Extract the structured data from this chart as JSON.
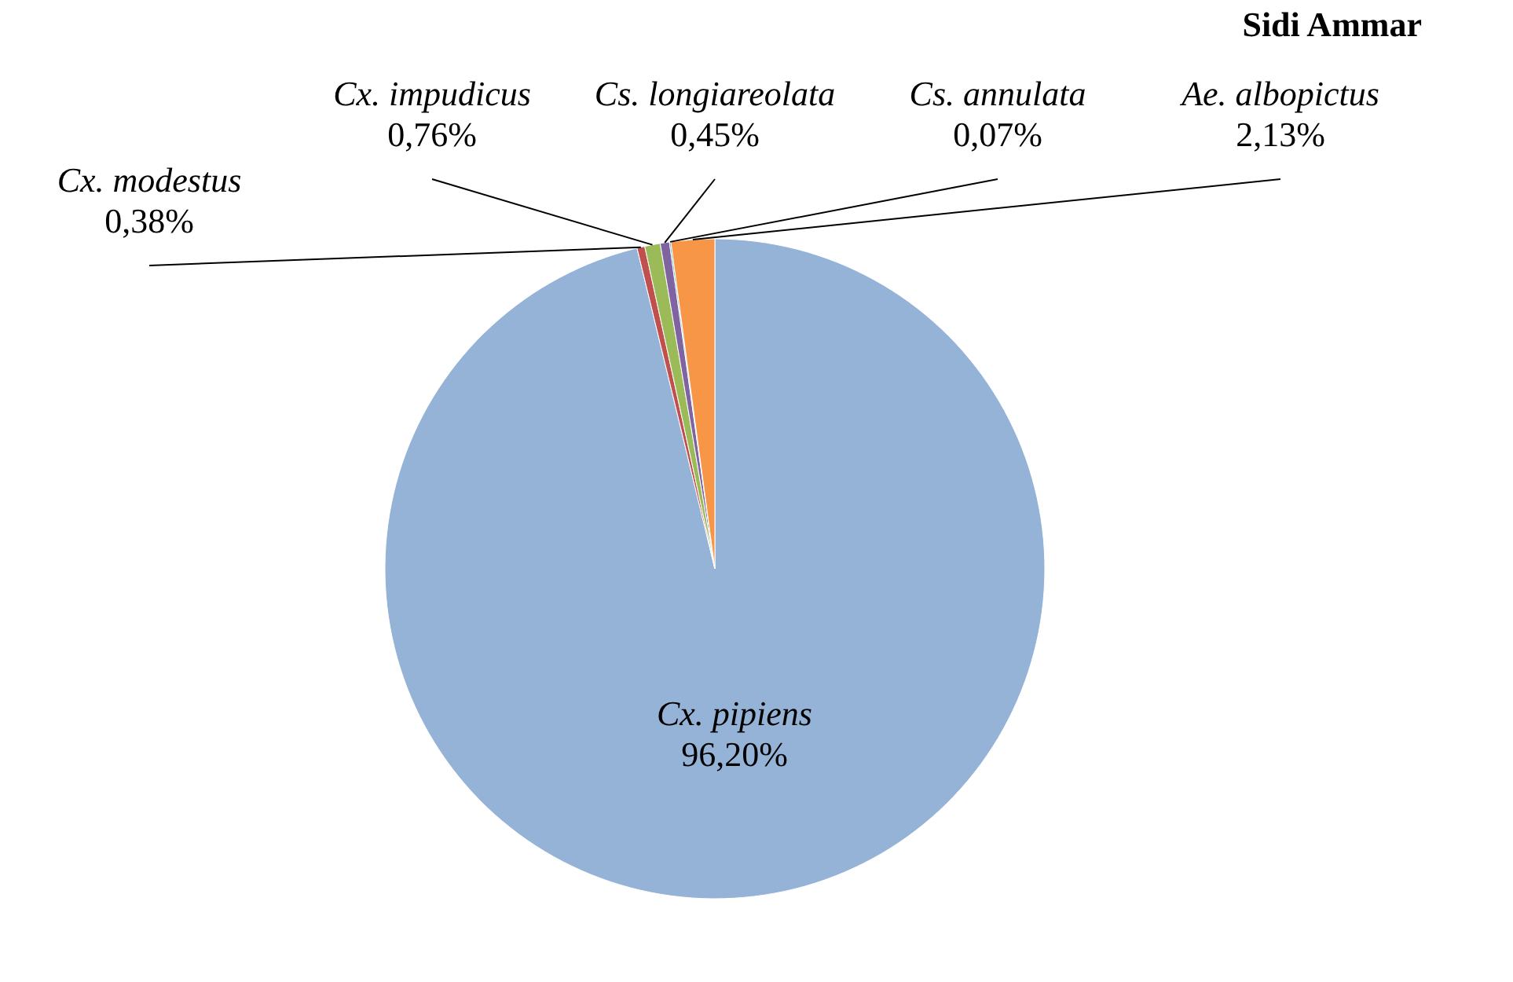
{
  "chart_data": {
    "type": "pie",
    "title": "Sidi Ammar",
    "categories": [
      "Cx. pipiens",
      "Cx. modestus",
      "Cx. impudicus",
      "Cs. longiareolata",
      "Cs. annulata",
      "Ae. albopictus"
    ],
    "values": [
      96.2,
      0.38,
      0.76,
      0.45,
      0.07,
      2.13
    ],
    "value_labels": [
      "96,20%",
      "0,38%",
      "0,76%",
      "0,45%",
      "0,07%",
      "2,13%"
    ],
    "colors": [
      "#95b3d7",
      "#c0504d",
      "#9bbb59",
      "#8064a2",
      "#4bacc6",
      "#f79646"
    ],
    "legend": false
  }
}
